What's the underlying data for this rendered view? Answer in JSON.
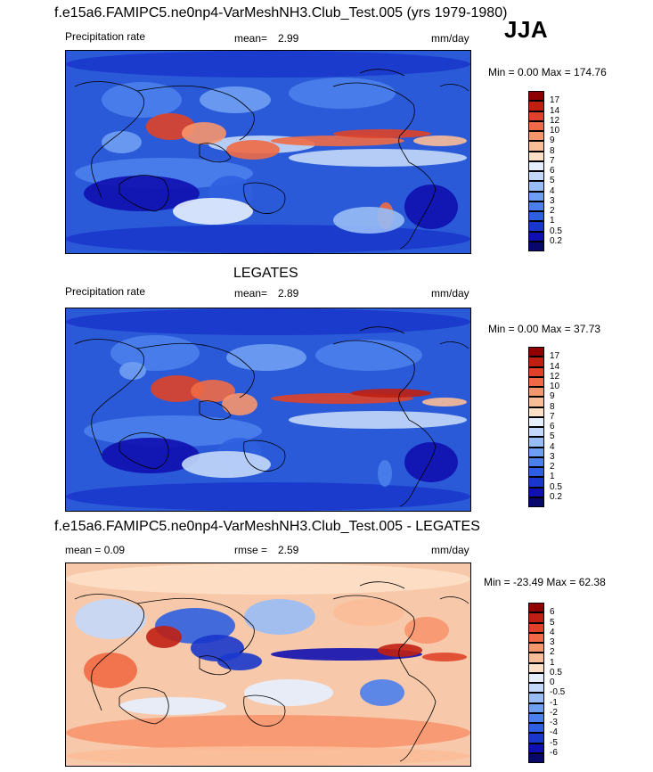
{
  "season": "JJA",
  "colors": {
    "model_levels": [
      "#08086b",
      "#1010b0",
      "#1a37cc",
      "#2e5fe0",
      "#4b80ec",
      "#6f9ff2",
      "#98bdf6",
      "#c3d8fa",
      "#e6efff",
      "#fde0c6",
      "#fbbd98",
      "#f7956d",
      "#ef6a45",
      "#df4228",
      "#c02012",
      "#8f0000"
    ],
    "diff_levels": [
      "#08086b",
      "#1010b0",
      "#1a37cc",
      "#2e5fe0",
      "#4b80ec",
      "#6f9ff2",
      "#98bdf6",
      "#c3d8fa",
      "#e6efff",
      "#fde0c6",
      "#fbbd98",
      "#f7956d",
      "#ef6a45",
      "#df4228",
      "#c02012",
      "#8f0000"
    ]
  },
  "panels": [
    {
      "id": "model",
      "title": "f.e15a6.FAMIPC5.ne0np4-VarMeshNH3.Club_Test.005 (yrs 1979-1980)",
      "left_label": "Precipitation rate",
      "stat_label": "mean=",
      "stat_value": "2.99",
      "units": "mm/day",
      "minmax": "Min =   0.00 Max = 174.76",
      "levels": [
        "17",
        "14",
        "12",
        "10",
        "9",
        "8",
        "7",
        "6",
        "5",
        "4",
        "3",
        "2",
        "1",
        "0.5",
        "0.2"
      ],
      "palette": "model"
    },
    {
      "id": "obs",
      "title": "LEGATES",
      "left_label": "Precipitation rate",
      "stat_label": "mean=",
      "stat_value": "2.89",
      "units": "mm/day",
      "minmax": "Min =   0.00 Max =  37.73",
      "levels": [
        "17",
        "14",
        "12",
        "10",
        "9",
        "8",
        "7",
        "6",
        "5",
        "4",
        "3",
        "2",
        "1",
        "0.5",
        "0.2"
      ],
      "palette": "model"
    },
    {
      "id": "diff",
      "title": "f.e15a6.FAMIPC5.ne0np4-VarMeshNH3.Club_Test.005 - LEGATES",
      "left_label": "mean =   0.09",
      "stat_label": "rmse =",
      "stat_value": "2.59",
      "units": "mm/day",
      "minmax": "Min = -23.49 Max =  62.38",
      "levels": [
        "6",
        "5",
        "4",
        "3",
        "2",
        "1",
        "0.5",
        "0",
        "-0.5",
        "-1",
        "-2",
        "-3",
        "-4",
        "-5",
        "-6"
      ],
      "palette": "diff"
    }
  ]
}
